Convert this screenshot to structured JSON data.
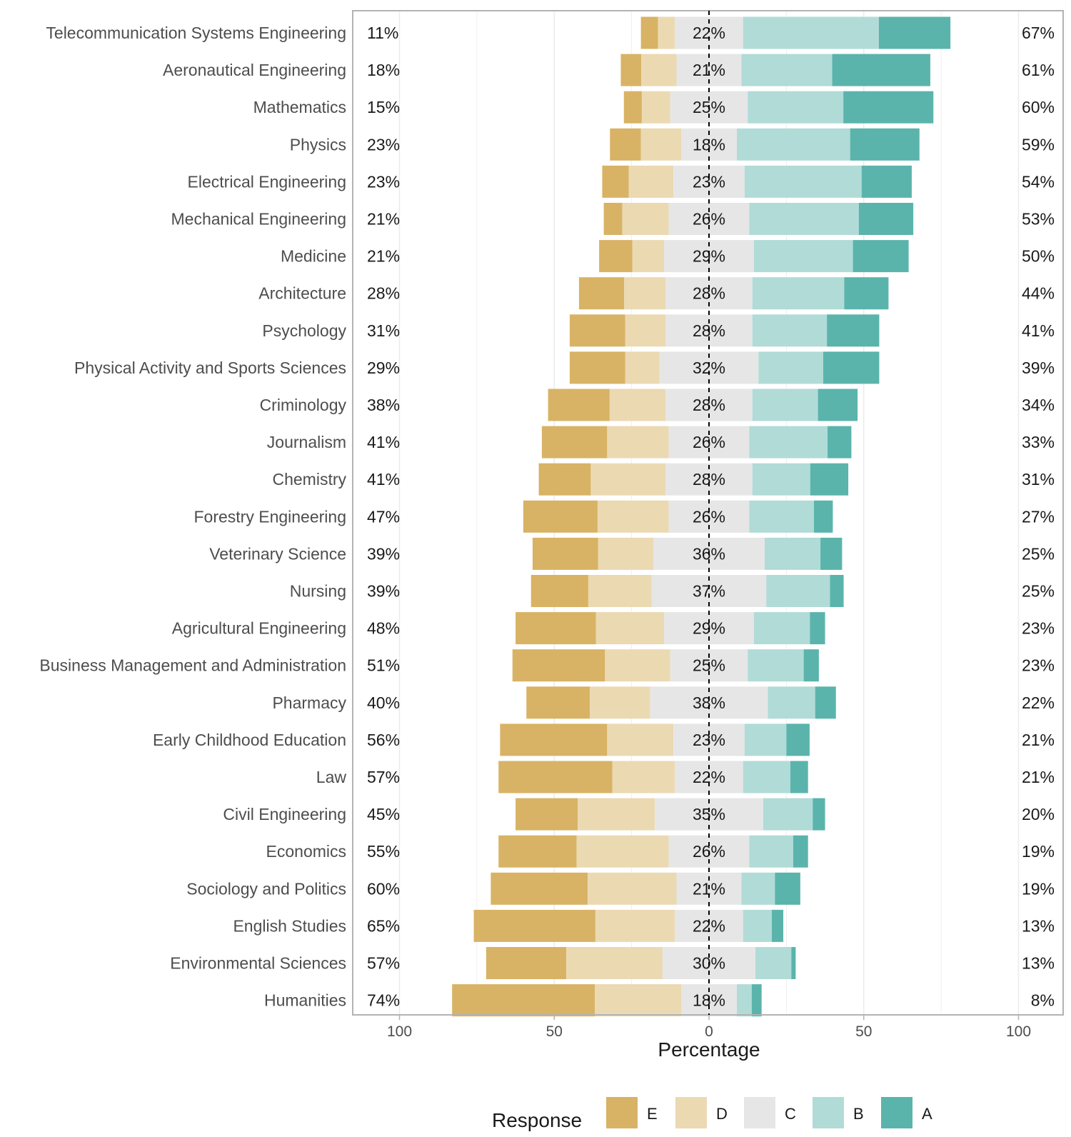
{
  "chart_data": {
    "type": "bar",
    "subtype": "diverging-stacked-likert",
    "xlabel": "Percentage",
    "xlim": [
      -100,
      100
    ],
    "xticks": [
      -100,
      -50,
      0,
      50,
      100
    ],
    "xtick_labels": [
      "100",
      "50",
      "0",
      "50",
      "100"
    ],
    "legend": {
      "title": "Response",
      "position": "bottom",
      "entries": [
        "E",
        "D",
        "C",
        "B",
        "A"
      ]
    },
    "colors": {
      "E": "#d8b365",
      "D": "#ebd9b2",
      "C": "#e6e6e6",
      "B": "#b1dbd7",
      "A": "#5ab4ac"
    },
    "categories": [
      "Telecommunication Systems Engineering",
      "Aeronautical Engineering",
      "Mathematics",
      "Physics",
      "Electrical Engineering",
      "Mechanical Engineering",
      "Medicine",
      "Architecture",
      "Psychology",
      "Physical Activity and Sports Sciences",
      "Criminology",
      "Journalism",
      "Chemistry",
      "Forestry Engineering",
      "Veterinary Science",
      "Nursing",
      "Agricultural Engineering",
      "Business Management and Administration",
      "Pharmacy",
      "Early Childhood Education",
      "Law",
      "Civil Engineering",
      "Economics",
      "Sociology and Politics",
      "English Studies",
      "Environmental Sciences",
      "Humanities"
    ],
    "series": [
      {
        "name": "E",
        "values": [
          5.5,
          6.6,
          5.8,
          10.0,
          8.6,
          6.0,
          10.7,
          14.6,
          17.9,
          17.9,
          19.9,
          21.1,
          16.8,
          24.0,
          21.2,
          18.5,
          26.0,
          29.9,
          20.5,
          34.6,
          36.8,
          20.1,
          25.2,
          31.3,
          39.3,
          25.9,
          46.1
        ]
      },
      {
        "name": "D",
        "values": [
          5.5,
          11.4,
          9.2,
          13.0,
          14.4,
          15.0,
          10.3,
          13.4,
          13.1,
          11.1,
          18.1,
          19.9,
          24.2,
          23.0,
          17.8,
          20.5,
          22.0,
          21.1,
          19.5,
          21.4,
          20.2,
          24.9,
          29.8,
          28.7,
          25.7,
          31.1,
          27.9
        ]
      },
      {
        "name": "C",
        "values": [
          22.0,
          21.0,
          25.0,
          18.0,
          23.0,
          26.0,
          29.0,
          28.0,
          28.0,
          32.0,
          28.0,
          26.0,
          28.0,
          26.0,
          36.0,
          37.0,
          29.0,
          25.0,
          38.0,
          23.0,
          22.0,
          35.0,
          26.0,
          21.0,
          22.0,
          30.0,
          18.0
        ]
      },
      {
        "name": "B",
        "values": [
          43.9,
          29.3,
          30.9,
          36.6,
          37.8,
          35.4,
          32.0,
          29.7,
          24.1,
          20.9,
          21.2,
          25.3,
          18.7,
          20.9,
          18.0,
          20.6,
          18.1,
          18.1,
          15.3,
          13.5,
          15.3,
          16.0,
          14.2,
          10.8,
          9.3,
          11.6,
          4.8
        ]
      },
      {
        "name": "A",
        "values": [
          23.1,
          31.7,
          29.1,
          22.4,
          16.2,
          17.6,
          18.0,
          14.3,
          16.9,
          18.1,
          12.8,
          7.7,
          12.3,
          6.1,
          7.0,
          4.4,
          4.9,
          4.9,
          6.7,
          7.5,
          5.7,
          4.0,
          4.8,
          8.2,
          3.7,
          1.4,
          3.2
        ]
      }
    ],
    "left_labels": [
      "11%",
      "18%",
      "15%",
      "23%",
      "23%",
      "21%",
      "21%",
      "28%",
      "31%",
      "29%",
      "38%",
      "41%",
      "41%",
      "47%",
      "39%",
      "39%",
      "48%",
      "51%",
      "40%",
      "56%",
      "57%",
      "45%",
      "55%",
      "60%",
      "65%",
      "57%",
      "74%"
    ],
    "center_labels": [
      "22%",
      "21%",
      "25%",
      "18%",
      "23%",
      "26%",
      "29%",
      "28%",
      "28%",
      "32%",
      "28%",
      "26%",
      "28%",
      "26%",
      "36%",
      "37%",
      "29%",
      "25%",
      "38%",
      "23%",
      "22%",
      "35%",
      "26%",
      "21%",
      "22%",
      "30%",
      "18%"
    ],
    "right_labels": [
      "67%",
      "61%",
      "60%",
      "59%",
      "54%",
      "53%",
      "50%",
      "44%",
      "41%",
      "39%",
      "34%",
      "33%",
      "31%",
      "27%",
      "25%",
      "25%",
      "23%",
      "23%",
      "22%",
      "21%",
      "21%",
      "20%",
      "19%",
      "19%",
      "13%",
      "13%",
      "8%"
    ]
  }
}
